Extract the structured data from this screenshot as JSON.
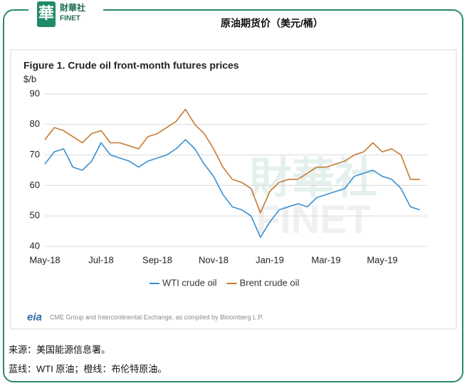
{
  "header": {
    "logo_glyph": "華",
    "logo_name": "財華社",
    "logo_sub": "FINET",
    "title": "原油期货价（美元/桶）"
  },
  "watermark": {
    "name": "財華社",
    "sub": "FINET"
  },
  "chart_data": {
    "type": "line",
    "title": "Figure 1. Crude oil front-month futures prices",
    "y_label": "$/b",
    "categories": [
      "May-18",
      null,
      null,
      null,
      null,
      null,
      "Jul-18",
      null,
      null,
      null,
      null,
      null,
      "Sep-18",
      null,
      null,
      null,
      null,
      null,
      "Nov-18",
      null,
      null,
      null,
      null,
      null,
      "Jan-19",
      null,
      null,
      null,
      null,
      null,
      "Mar-19",
      null,
      null,
      null,
      null,
      null,
      "May-19",
      null,
      null,
      null,
      null
    ],
    "series": [
      {
        "name": "WTI crude oil",
        "color": "#3b8fd0",
        "values": [
          67,
          71,
          72,
          66,
          65,
          68,
          74,
          70,
          69,
          68,
          66,
          68,
          69,
          70,
          72,
          75,
          72,
          67,
          63,
          57,
          53,
          52,
          50,
          43,
          48,
          52,
          53,
          54,
          53,
          56,
          57,
          58,
          59,
          63,
          64,
          65,
          63,
          62,
          59,
          53,
          52
        ]
      },
      {
        "name": "Brent crude oil",
        "color": "#c67a33",
        "values": [
          75,
          79,
          78,
          76,
          74,
          77,
          78,
          74,
          74,
          73,
          72,
          76,
          77,
          79,
          81,
          85,
          80,
          77,
          72,
          66,
          62,
          61,
          59,
          51,
          58,
          61,
          62,
          62,
          64,
          66,
          66,
          67,
          68,
          70,
          71,
          74,
          71,
          72,
          70,
          62,
          62
        ]
      }
    ],
    "ylim": [
      40,
      90
    ],
    "yticks": [
      40,
      50,
      60,
      70,
      80,
      90
    ],
    "grid": true,
    "legend": "bottom",
    "source_logo": "eia",
    "source": "CME Group and Intercontinental Exchange, as compiled by Bloomberg L.P."
  },
  "footer": {
    "line1": "来源：美国能源信息署。",
    "line2": "蓝线：WTI 原油；橙线：布伦特原油。"
  }
}
